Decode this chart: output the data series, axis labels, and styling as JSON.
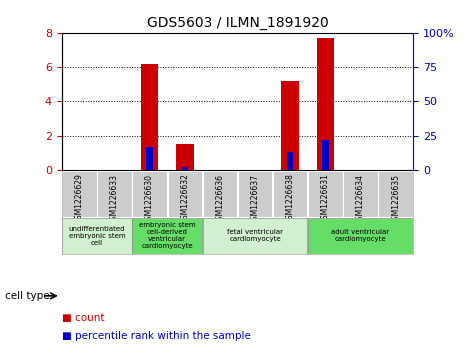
{
  "title": "GDS5603 / ILMN_1891920",
  "samples": [
    "GSM1226629",
    "GSM1226633",
    "GSM1226630",
    "GSM1226632",
    "GSM1226636",
    "GSM1226637",
    "GSM1226638",
    "GSM1226631",
    "GSM1226634",
    "GSM1226635"
  ],
  "count_values": [
    0,
    0,
    6.2,
    1.5,
    0,
    0,
    5.2,
    7.7,
    0,
    0
  ],
  "percentile_values": [
    0,
    0,
    17,
    2.5,
    0,
    0,
    13,
    22,
    0,
    0
  ],
  "ylim_left": [
    0,
    8
  ],
  "ylim_right": [
    0,
    100
  ],
  "yticks_left": [
    0,
    2,
    4,
    6,
    8
  ],
  "yticks_right": [
    0,
    25,
    50,
    75,
    100
  ],
  "cell_types": [
    {
      "label": "undifferentiated\nembryonic stem\ncell",
      "start": 0,
      "end": 2,
      "color": "#d0f0d0"
    },
    {
      "label": "embryonic stem\ncell-derived\nventricular\ncardiomyocyte",
      "start": 2,
      "end": 4,
      "color": "#66dd66"
    },
    {
      "label": "fetal ventricular\ncardiomyocyte",
      "start": 4,
      "end": 7,
      "color": "#d0f0d0"
    },
    {
      "label": "adult ventricular\ncardiomyocyte",
      "start": 7,
      "end": 10,
      "color": "#66dd66"
    }
  ],
  "bar_width": 0.5,
  "pct_bar_width": 0.18,
  "count_color": "#cc0000",
  "percentile_color": "#0000cc",
  "grid_color": "#000000",
  "background_color": "#ffffff",
  "tick_bg_color": "#cccccc",
  "legend_items": [
    "count",
    "percentile rank within the sample"
  ],
  "cell_type_label": "cell type"
}
